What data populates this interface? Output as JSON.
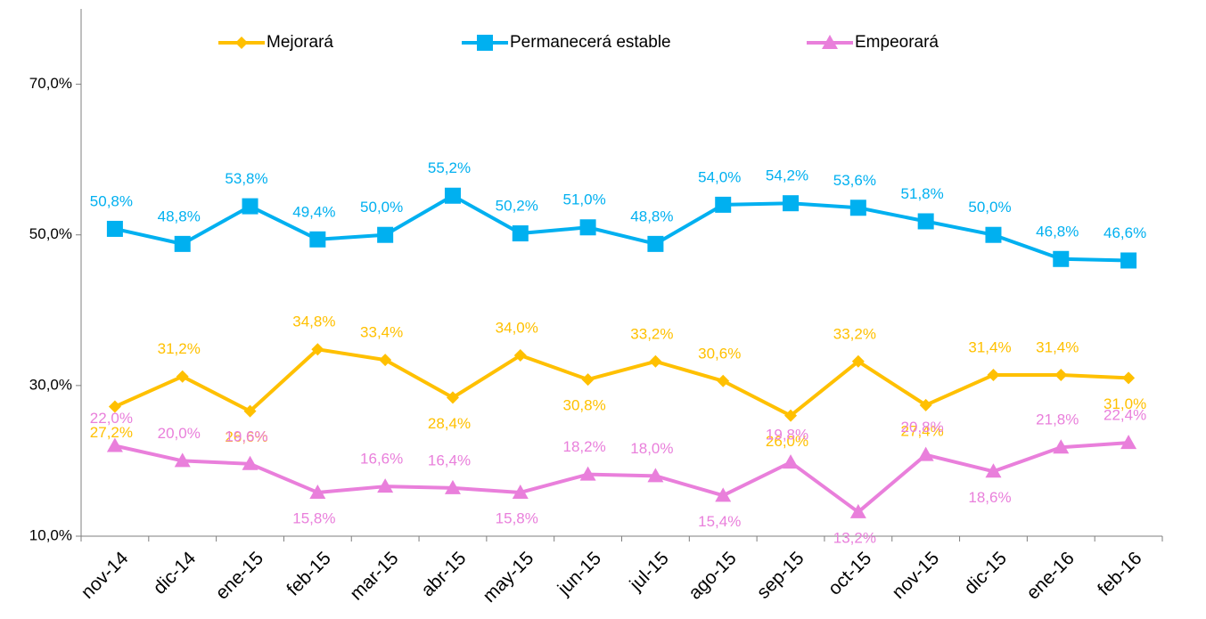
{
  "chart_data": {
    "type": "line",
    "categories": [
      "nov-14",
      "dic-14",
      "ene-15",
      "feb-15",
      "mar-15",
      "abr-15",
      "may-15",
      "jun-15",
      "jul-15",
      "ago-15",
      "sep-15",
      "oct-15",
      "nov-15",
      "dic-15",
      "ene-16",
      "feb-16"
    ],
    "series": [
      {
        "name": "Mejorará",
        "color": "#FFC000",
        "marker": "diamond",
        "values": [
          27.2,
          31.2,
          26.6,
          34.8,
          33.4,
          28.4,
          34.0,
          30.8,
          33.2,
          30.6,
          26.0,
          33.2,
          27.4,
          31.4,
          31.4,
          31.0
        ],
        "value_labels": [
          "27,2%",
          "31,2%",
          "26,6%",
          "34,8%",
          "33,4%",
          "28,4%",
          "34,0%",
          "30,8%",
          "33,2%",
          "30,6%",
          "26,0%",
          "33,2%",
          "27,4%",
          "31,4%",
          "31,4%",
          "31,0%"
        ]
      },
      {
        "name": "Permanecerá estable",
        "color": "#00B0F0",
        "marker": "square",
        "values": [
          50.8,
          48.8,
          53.8,
          49.4,
          50.0,
          55.2,
          50.2,
          51.0,
          48.8,
          54.0,
          54.2,
          53.6,
          51.8,
          50.0,
          46.8,
          46.6
        ],
        "value_labels": [
          "50,8%",
          "48,8%",
          "53,8%",
          "49,4%",
          "50,0%",
          "55,2%",
          "50,2%",
          "51,0%",
          "48,8%",
          "54,0%",
          "54,2%",
          "53,6%",
          "51,8%",
          "50,0%",
          "46,8%",
          "46,6%"
        ]
      },
      {
        "name": "Empeorará",
        "color": "#E97FDB",
        "marker": "triangle",
        "values": [
          22.0,
          20.0,
          19.6,
          15.8,
          16.6,
          16.4,
          15.8,
          18.2,
          18.0,
          15.4,
          19.8,
          13.2,
          20.8,
          18.6,
          21.8,
          22.4
        ],
        "value_labels": [
          "22,0%",
          "20,0%",
          "19,6%",
          "15,8%",
          "16,6%",
          "16,4%",
          "15,8%",
          "18,2%",
          "18,0%",
          "15,4%",
          "19,8%",
          "13,2%",
          "20,8%",
          "18,6%",
          "21,8%",
          "22,4%"
        ]
      }
    ],
    "ylim": [
      10,
      80
    ],
    "yticks": [
      {
        "value": 10,
        "label": "10,0%"
      },
      {
        "value": 30,
        "label": "30,0%"
      },
      {
        "value": 50,
        "label": "50,0%"
      },
      {
        "value": 70,
        "label": "70,0%"
      }
    ],
    "grid": false,
    "legend": "top"
  }
}
